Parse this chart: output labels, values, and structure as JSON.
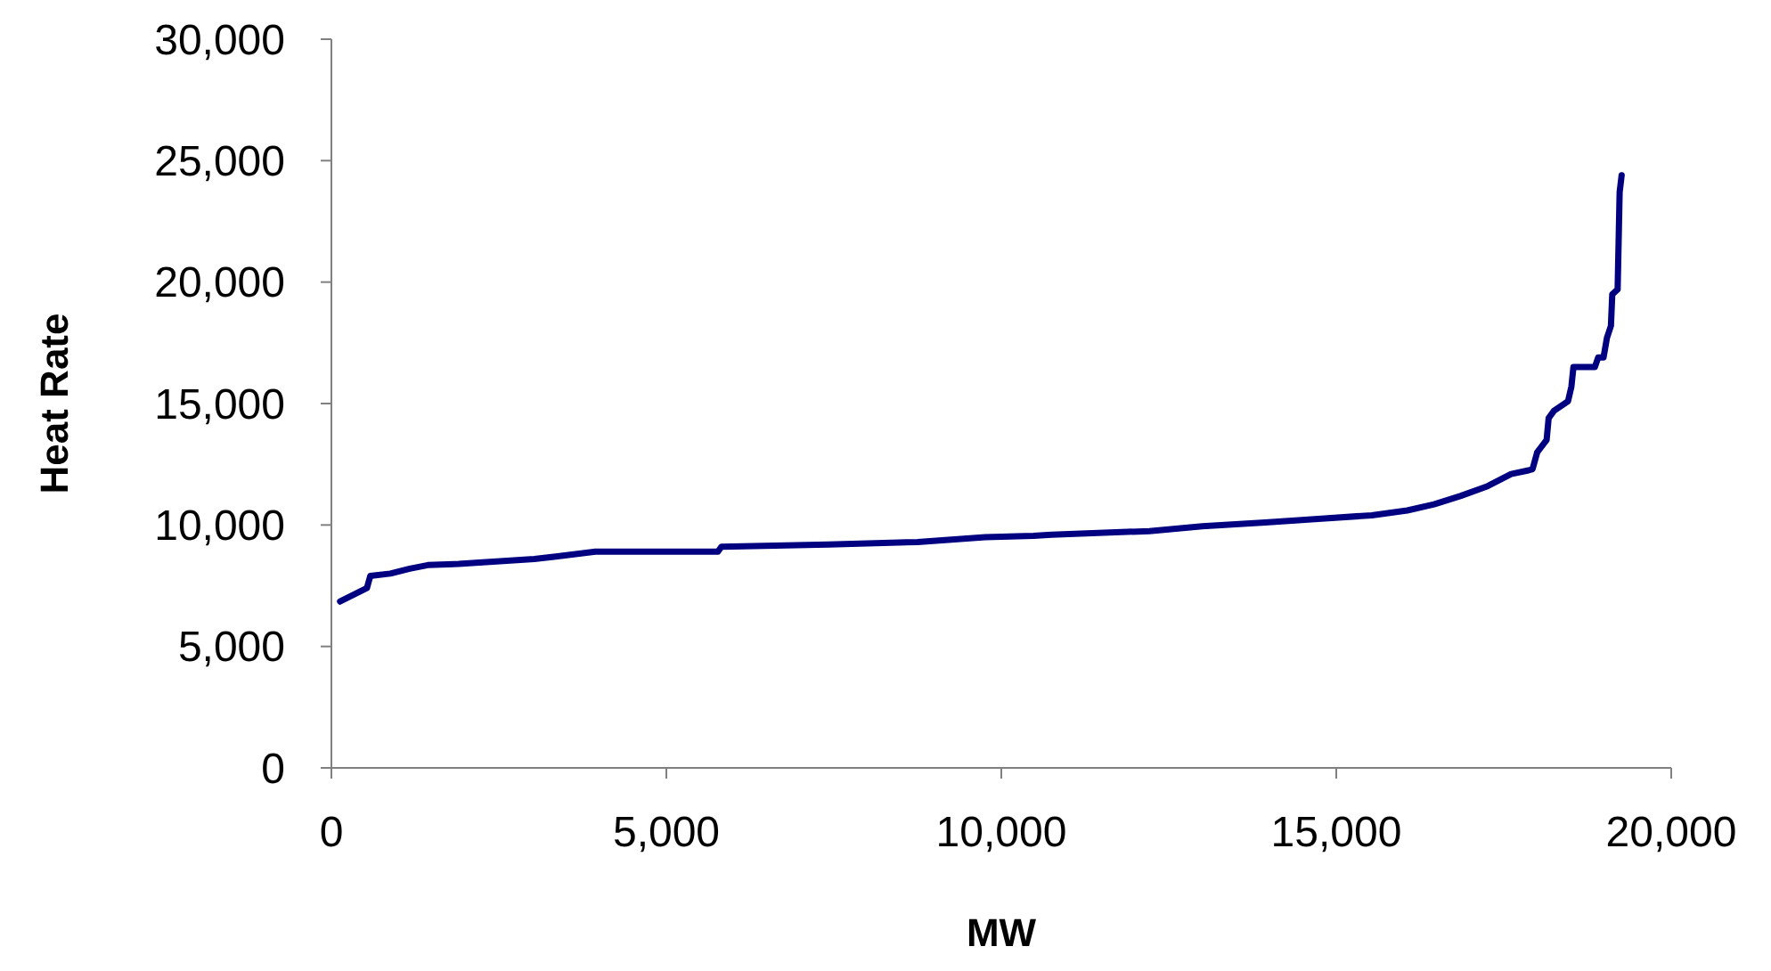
{
  "chart_data": {
    "type": "line",
    "xlabel": "MW",
    "ylabel": "Heat Rate",
    "x": [
      130,
      530,
      580,
      880,
      1170,
      1440,
      1900,
      3030,
      3350,
      3940,
      5770,
      5820,
      7420,
      8750,
      9760,
      10480,
      10750,
      12210,
      13000,
      13940,
      14730,
      15530,
      16060,
      16460,
      16860,
      17260,
      17610,
      17870,
      17930,
      18000,
      18140,
      18170,
      18250,
      18460,
      18510,
      18540,
      18860,
      18910,
      18990,
      19040,
      19100,
      19120,
      19200,
      19230,
      19260
    ],
    "series": [
      {
        "color": "#000080",
        "values": [
          6850,
          7400,
          7900,
          8000,
          8200,
          8350,
          8400,
          8600,
          8700,
          8900,
          8900,
          9100,
          9200,
          9300,
          9500,
          9550,
          9600,
          9750,
          9950,
          10100,
          10250,
          10400,
          10600,
          10850,
          11200,
          11600,
          12100,
          12250,
          12300,
          13000,
          13500,
          14400,
          14700,
          15100,
          15700,
          16500,
          16500,
          16900,
          16900,
          17700,
          18200,
          19500,
          19700,
          23700,
          24400
        ]
      }
    ],
    "xlim": [
      0,
      20000
    ],
    "ylim": [
      0,
      30000
    ],
    "xticks": [
      {
        "value": 0,
        "label": "0"
      },
      {
        "value": 5000,
        "label": "5,000"
      },
      {
        "value": 10000,
        "label": "10,000"
      },
      {
        "value": 15000,
        "label": "15,000"
      },
      {
        "value": 20000,
        "label": "20,000"
      }
    ],
    "yticks": [
      {
        "value": 0,
        "label": "0"
      },
      {
        "value": 5000,
        "label": "5,000"
      },
      {
        "value": 10000,
        "label": "10,000"
      },
      {
        "value": 15000,
        "label": "15,000"
      },
      {
        "value": 20000,
        "label": "20,000"
      },
      {
        "value": 25000,
        "label": "25,000"
      },
      {
        "value": 30000,
        "label": "30,000"
      }
    ],
    "grid": false
  }
}
